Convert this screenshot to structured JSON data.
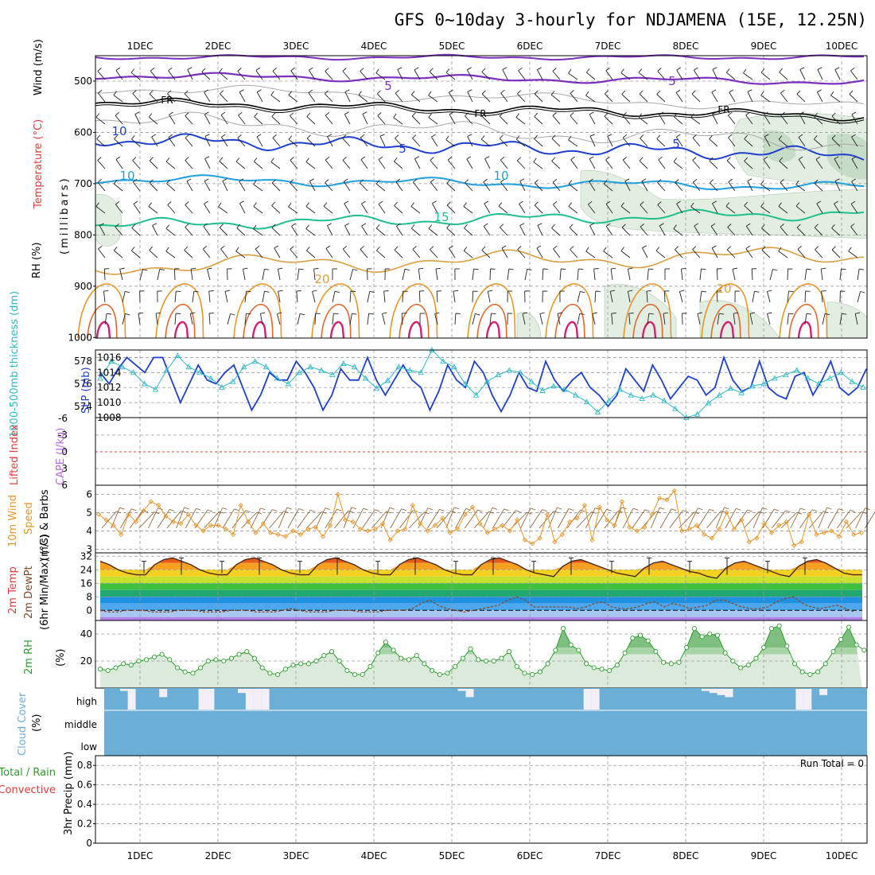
{
  "title": "GFS 0~10day 3-hourly for NDJAMENA (15E, 12.25N)",
  "date_labels": [
    "1DEC",
    "2DEC",
    "3DEC",
    "4DEC",
    "5DEC",
    "6DEC",
    "7DEC",
    "8DEC",
    "9DEC",
    "10DEC"
  ],
  "colors": {
    "wind_label": "#000000",
    "temp_label": "#e03c3c",
    "rh_fill": "#3cba3c",
    "thickness": "#2fb8c8",
    "slp": "#1f3fcf",
    "cape": "#b56ce0",
    "lifted": "#e03c3c",
    "wind10": "#e8962a",
    "rh2m": "#2ca02c",
    "cloud": "#6baed6",
    "precip_total": "#2ca02c",
    "precip_conv": "#e03c3c"
  },
  "panels": {
    "upper": {
      "ylabel_wind": "Wind (m/s)",
      "ylabel_temp": "Temperature (°C)",
      "ylabel_rh": "RH (%)",
      "ylabel_mb": "(millibars)",
      "pressure_ticks": [
        "500",
        "600",
        "700",
        "800",
        "900",
        "1000"
      ],
      "contour_labels": [
        "5",
        "5",
        "10",
        "5",
        "5",
        "5",
        "10",
        "10",
        "15",
        "20",
        "20",
        "FR",
        "FR",
        "FR"
      ]
    },
    "slp": {
      "ylabel_left": "1000-500mb thickness (dm)",
      "ylabel_right": "SLP (mb)",
      "left_ticks": [
        "578",
        "576",
        "574"
      ],
      "right_ticks": [
        "1016",
        "1014",
        "1012",
        "1010",
        "1008"
      ]
    },
    "cape": {
      "ylabel_left": "Lifted Index",
      "ylabel_right": "CAPE (J/kg)",
      "ticks": [
        "-6",
        "-3",
        "0",
        "3",
        "6"
      ]
    },
    "wind10": {
      "ylabel1": "10m Wind",
      "ylabel2": "Speed",
      "ylabel3": "(m/s) & Barbs",
      "ticks": [
        "6",
        "5",
        "4",
        "3"
      ]
    },
    "temp": {
      "ylabel1": "2m Temp",
      "ylabel2": "2m DewPt",
      "ylabel3": "(6hr Min/Max) (°C)",
      "ticks": [
        "32",
        "24",
        "16",
        "8",
        "0"
      ]
    },
    "rh2m": {
      "ylabel1": "2m RH",
      "ylabel2": "(%)",
      "ticks": [
        "40",
        "20"
      ]
    },
    "cloud": {
      "ylabel1": "Cloud Cover",
      "ylabel2": "(%)",
      "levels": [
        "high",
        "middle",
        "low"
      ]
    },
    "precip": {
      "ylabel1": "Total / Rain",
      "ylabel2": "Convective",
      "ylabel3": "3hr Precip (mm)",
      "ticks": [
        "0.8",
        "0.6",
        "0.4",
        "0.2",
        "0"
      ],
      "run_total": "Run Total = 0"
    }
  },
  "chart_data": {
    "type": "line",
    "x_start_day_fraction": -0.4,
    "step_hours": 3,
    "series": [
      {
        "name": "SLP (mb)",
        "values": [
          1014,
          1012.5,
          1014.5,
          1016,
          1015,
          1014,
          1016,
          1016,
          1013,
          1010,
          1012.5,
          1015,
          1013,
          1012.5,
          1014,
          1015,
          1012,
          1009,
          1011,
          1014,
          1013,
          1013,
          1015.5,
          1014,
          1012,
          1009,
          1011,
          1014.5,
          1013,
          1013,
          1016,
          1013,
          1011,
          1013,
          1015,
          1013,
          1012,
          1009,
          1011.5,
          1015,
          1013,
          1012,
          1015.5,
          1014,
          1011,
          1008.8,
          1011,
          1014,
          1012,
          1011.5,
          1015.5,
          1013,
          1011.5,
          1013,
          1014,
          1012,
          1011,
          1009.5,
          1011,
          1014.5,
          1013,
          1011.5,
          1015,
          1013,
          1010.5,
          1012,
          1013.5,
          1013,
          1011,
          1012,
          1016,
          1013,
          1011.5,
          1012,
          1015.5,
          1012,
          1011,
          1010.5,
          1013.5,
          1014,
          1011,
          1013,
          1015.5,
          1012,
          1011,
          1012,
          1014.5
        ]
      },
      {
        "name": "1000-500mb thickness (dm)",
        "values": [
          576.5,
          578,
          577.5,
          577,
          576,
          575.5,
          577.2,
          578.5,
          577.5,
          577,
          576.5,
          575.7,
          576.2,
          577.5,
          578,
          577.5,
          576.5,
          576,
          577,
          577.5,
          577.2,
          576.8,
          577.8,
          577.5,
          576.5,
          575.6,
          576.3,
          577.5,
          577.2,
          577,
          579,
          578,
          577.5,
          576,
          575,
          576.2,
          576.8,
          577.2,
          577,
          576.2,
          575.4,
          575.8,
          575.5,
          575,
          574.4,
          573.5,
          574.5,
          575.5,
          575,
          574.7,
          575,
          574.5,
          573.8,
          573,
          573.3,
          574.3,
          575,
          575.6,
          575.2,
          575.8,
          576,
          576.5,
          576.8,
          577.2,
          576.5,
          576,
          576.5,
          577,
          576.2,
          575.7,
          576
        ]
      },
      {
        "name": "10m Wind Speed (m/s)",
        "values": [
          4.9,
          4.6,
          4.3,
          3.8,
          4.9,
          4.5,
          5.1,
          5.6,
          5.4,
          4.8,
          4.5,
          4.4,
          4.9,
          4.3,
          4.0,
          4.3,
          4.3,
          4.1,
          3.8,
          5.4,
          4.5,
          3.9,
          4.4,
          3.9,
          3.8,
          3.7,
          4.0,
          3.8,
          4.1,
          4.2,
          3.7,
          4.3,
          6.0,
          4.6,
          4.5,
          4.1,
          4.0,
          4.1,
          4.4,
          3.5,
          4.0,
          4.1,
          5.4,
          4.4,
          4.0,
          4.3,
          4.7,
          3.9,
          4.1,
          4.9,
          5.3,
          4.4,
          3.9,
          4.1,
          4.3,
          4.0,
          4.6,
          3.5,
          3.3,
          3.6,
          4.9,
          3.4,
          3.8,
          4.5,
          4.7,
          5.4,
          3.5,
          5.3,
          4.6,
          4.3,
          5.6,
          4.2,
          4.0,
          4.2,
          4.9,
          5.8,
          5.7,
          6.2,
          4.0,
          4.1,
          4.3,
          3.8,
          3.6,
          4.1,
          5.0,
          4.1,
          4.6,
          3.4,
          3.6,
          4.4,
          3.9,
          4.3,
          4.5,
          3.2,
          3.4,
          4.9,
          3.8,
          3.9,
          4.0,
          3.7,
          4.5,
          3.8,
          3.9,
          5.1
        ]
      },
      {
        "name": "2m Temp (°C)",
        "values": [
          29,
          27,
          24,
          22,
          21,
          21,
          27,
          30,
          31,
          29,
          27,
          24,
          22,
          21,
          21,
          27,
          30,
          31,
          29,
          27,
          24,
          22,
          21,
          21,
          27,
          30,
          31,
          29,
          27,
          24,
          22,
          21,
          21,
          27,
          30,
          31,
          29,
          27,
          24,
          22,
          21,
          21,
          27,
          30,
          31,
          29,
          27,
          24,
          22,
          21,
          20,
          26,
          29,
          30,
          28,
          26,
          24,
          22,
          21,
          20,
          25,
          28,
          29,
          27,
          25,
          23,
          22,
          20,
          19,
          25,
          28,
          29,
          27,
          25,
          23,
          21,
          20,
          26,
          29,
          30,
          28,
          25,
          22,
          21,
          21
        ]
      },
      {
        "name": "2m DewPt (°C)",
        "values": [
          0,
          -1,
          -1,
          0,
          0,
          0,
          -1,
          -1,
          -1,
          0,
          0,
          0,
          -1,
          -1,
          -1,
          0,
          0,
          0,
          -1,
          -1,
          -1,
          0,
          1,
          0,
          -1,
          -1,
          -1,
          0,
          0,
          0,
          -1,
          -1,
          -1,
          0,
          0,
          0,
          1,
          4,
          6,
          3,
          1,
          0,
          -1,
          0,
          1,
          2,
          3,
          6,
          8,
          6,
          2,
          2,
          2,
          2,
          2,
          1,
          2,
          4,
          5,
          2,
          1,
          1,
          2,
          4,
          5,
          2,
          4,
          3,
          1,
          2,
          3,
          6,
          6,
          4,
          2,
          1,
          1,
          2,
          5,
          7,
          8,
          4,
          2,
          1,
          2,
          3,
          1,
          -1,
          0,
          1,
          0
        ]
      },
      {
        "name": "2m RH (%)",
        "values": [
          14,
          13,
          15,
          18,
          17,
          20,
          21,
          23,
          25,
          21,
          15,
          12,
          11,
          15,
          20,
          21,
          20,
          22,
          25,
          27,
          22,
          15,
          11,
          10,
          14,
          17,
          18,
          18,
          20,
          24,
          27,
          20,
          13,
          10,
          10,
          16,
          26,
          34,
          28,
          22,
          21,
          24,
          18,
          13,
          10,
          11,
          16,
          22,
          29,
          21,
          20,
          20,
          22,
          27,
          16,
          11,
          10,
          12,
          18,
          28,
          44,
          32,
          28,
          18,
          15,
          14,
          13,
          17,
          26,
          37,
          39,
          35,
          27,
          19,
          18,
          19,
          30,
          44,
          38,
          40,
          39,
          26,
          20,
          15,
          17,
          22,
          30,
          44,
          46,
          31,
          18,
          12,
          10,
          12,
          18,
          27,
          36,
          45,
          32,
          28
        ]
      },
      {
        "name": "High cloud cover (%)",
        "values": [
          100,
          100,
          90,
          0,
          100,
          100,
          100,
          60,
          100,
          100,
          100,
          100,
          0,
          0,
          100,
          100,
          100,
          80,
          0,
          0,
          0,
          100,
          100,
          100,
          100,
          100,
          100,
          100,
          100,
          100,
          100,
          100,
          100,
          100,
          100,
          100,
          100,
          100,
          100,
          100,
          100,
          100,
          100,
          100,
          100,
          90,
          60,
          100,
          100,
          100,
          100,
          100,
          100,
          100,
          100,
          100,
          100,
          100,
          100,
          100,
          100,
          0,
          0,
          100,
          100,
          100,
          100,
          100,
          100,
          100,
          100,
          100,
          100,
          100,
          100,
          100,
          90,
          80,
          70,
          60,
          100,
          100,
          100,
          100,
          100,
          100,
          100,
          100,
          0,
          0,
          100,
          70,
          100,
          100,
          100,
          100,
          100,
          100
        ]
      },
      {
        "name": "3hr Precip (mm)",
        "values": [
          0,
          0,
          0,
          0,
          0
        ]
      }
    ],
    "ylim_slp": [
      1008,
      1017
    ],
    "ylim_thickness": [
      573,
      579
    ],
    "ylim_wind10": [
      2.8,
      6.5
    ],
    "ylim_temp": [
      -6,
      34
    ],
    "ylim_rh": [
      0,
      50
    ],
    "ylim_precip": [
      0,
      0.9
    ],
    "grid": true
  }
}
